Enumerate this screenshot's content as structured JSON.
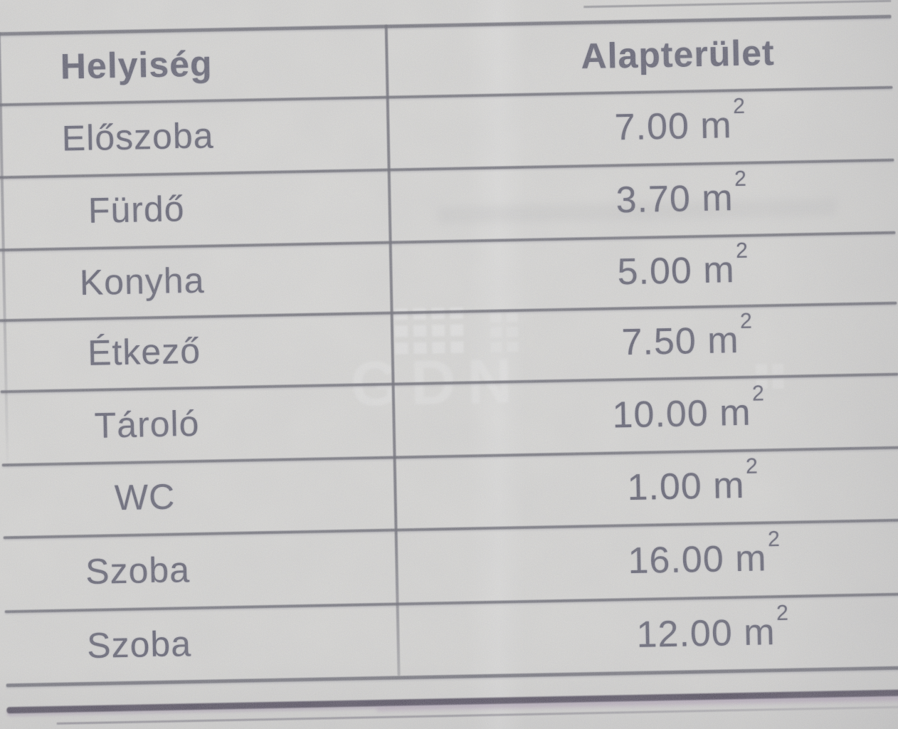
{
  "table": {
    "headers": {
      "room": "Helyiség",
      "area": "Alapterület"
    },
    "rows": [
      {
        "room": "Előszoba",
        "area_value": "7.00",
        "area_unit_base": "m",
        "area_unit_exp": "2"
      },
      {
        "room": "Fürdő",
        "area_value": "3.70",
        "area_unit_base": "m",
        "area_unit_exp": "2"
      },
      {
        "room": "Konyha",
        "area_value": "5.00",
        "area_unit_base": "m",
        "area_unit_exp": "2"
      },
      {
        "room": "Étkező",
        "area_value": "7.50",
        "area_unit_base": "m",
        "area_unit_exp": "2"
      },
      {
        "room": "Tároló",
        "area_value": "10.00",
        "area_unit_base": "m",
        "area_unit_exp": "2"
      },
      {
        "room": "WC",
        "area_value": "1.00",
        "area_unit_base": "m",
        "area_unit_exp": "2"
      },
      {
        "room": "Szoba",
        "area_value": "16.00",
        "area_unit_base": "m",
        "area_unit_exp": "2"
      },
      {
        "room": "Szoba",
        "area_value": "12.00",
        "area_unit_base": "m",
        "area_unit_exp": "2"
      }
    ]
  },
  "watermark": {
    "text": "GDN"
  },
  "colors": {
    "paper": "#d8d7d3",
    "ink": "#35354a",
    "line": "#3f3f4c",
    "heavy_line": "#241c31"
  }
}
